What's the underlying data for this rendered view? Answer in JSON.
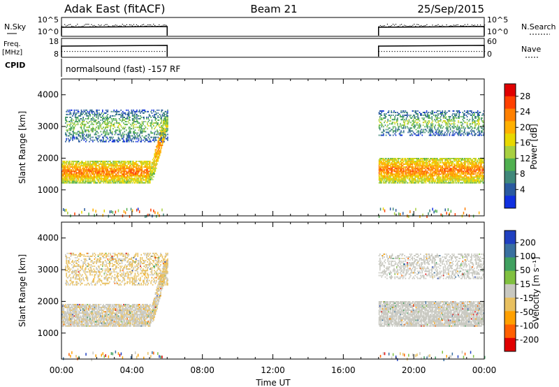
{
  "header": {
    "station": "Adak East (fitACF)",
    "beam": "Beam 21",
    "date": "25/Sep/2015"
  },
  "top_panels": {
    "nsky_label": "N.Sky",
    "nsky_ticks": [
      "10^5",
      "10^0"
    ],
    "nsearch_label": "N.Search",
    "freq_label": "Freq.",
    "freq_unit": "[MHz]",
    "freq_ticks": [
      "18",
      "8"
    ],
    "nave_label": "Nave",
    "nave_ticks": [
      "60",
      "0"
    ],
    "cpid_label": "CPID",
    "cpid_text": "normalsound (fast) -157 RF"
  },
  "chart_data": [
    {
      "type": "heatmap",
      "name": "power",
      "ylabel": "Slant Range [km]",
      "xlabel": "",
      "xlim": [
        0,
        24
      ],
      "ylim": [
        180,
        4500
      ],
      "yticks": [
        "4000",
        "3000",
        "2000",
        "1000"
      ],
      "colorbar": {
        "label": "Power [dB]",
        "ticks": [
          "28",
          "24",
          "20",
          "16",
          "12",
          "8",
          "4"
        ],
        "colors": [
          "#e00000",
          "#ff4000",
          "#ff8000",
          "#ffb000",
          "#e8d800",
          "#a8d040",
          "#50b050",
          "#40887a",
          "#2a5aa0",
          "#1030e0"
        ]
      },
      "data_windows": [
        [
          0,
          6
        ],
        [
          18,
          24
        ]
      ],
      "regions": [
        {
          "name": "main band early",
          "x": [
            0.0,
            5.0
          ],
          "range_km": [
            1200,
            1900
          ],
          "power_db": 26
        },
        {
          "name": "rising band",
          "x": [
            5.0,
            6.0
          ],
          "range_km": [
            1300,
            3300
          ],
          "power_db": 24
        },
        {
          "name": "upper scatter early",
          "x": [
            0.2,
            6.0
          ],
          "range_km": [
            2500,
            3500
          ],
          "power_db": 14
        },
        {
          "name": "main band late",
          "x": [
            18.0,
            24.0
          ],
          "range_km": [
            1200,
            2000
          ],
          "power_db": 26
        },
        {
          "name": "upper scatter late",
          "x": [
            18.0,
            24.0
          ],
          "range_km": [
            2700,
            3500
          ],
          "power_db": 14
        }
      ]
    },
    {
      "type": "heatmap",
      "name": "velocity",
      "ylabel": "Slant Range [km]",
      "xlabel": "Time UT",
      "xlim": [
        0,
        24
      ],
      "ylim": [
        180,
        4500
      ],
      "yticks": [
        "4000",
        "3000",
        "2000",
        "1000"
      ],
      "xticks": [
        "00:00",
        "04:00",
        "08:00",
        "12:00",
        "16:00",
        "20:00",
        "00:00"
      ],
      "colorbar": {
        "label": "Velocity [m s⁻¹]",
        "ticks": [
          "200",
          "100",
          "50",
          "15",
          "-15",
          "-50",
          "-100",
          "-200"
        ],
        "colors": [
          "#2040c0",
          "#3a70a0",
          "#40a060",
          "#80c040",
          "#c8c8c0",
          "#e8c060",
          "#ffa000",
          "#ff6000",
          "#e00000"
        ]
      },
      "data_windows": [
        [
          0,
          6
        ],
        [
          18,
          24
        ]
      ],
      "regions": [
        {
          "name": "main band early",
          "x": [
            0.0,
            5.0
          ],
          "range_km": [
            1200,
            1900
          ],
          "velocity": -20
        },
        {
          "name": "rising band",
          "x": [
            5.0,
            6.0
          ],
          "range_km": [
            1300,
            3300
          ],
          "velocity": -30
        },
        {
          "name": "upper scatter early",
          "x": [
            0.2,
            6.0
          ],
          "range_km": [
            2500,
            3500
          ],
          "velocity": -40
        },
        {
          "name": "main band late",
          "x": [
            18.0,
            24.0
          ],
          "range_km": [
            1200,
            2000
          ],
          "velocity": 0
        },
        {
          "name": "upper scatter late",
          "x": [
            18.0,
            24.0
          ],
          "range_km": [
            2700,
            3500
          ],
          "velocity": 0
        }
      ]
    }
  ]
}
